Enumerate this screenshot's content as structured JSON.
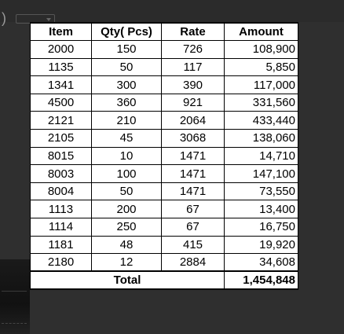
{
  "background": {
    "paren_text": ")"
  },
  "table": {
    "headers": [
      "Item",
      "Qty( Pcs)",
      "Rate",
      "Amount"
    ],
    "rows": [
      [
        "2000",
        "150",
        "726",
        "108,900"
      ],
      [
        "1135",
        "50",
        "117",
        "5,850"
      ],
      [
        "1341",
        "300",
        "390",
        "117,000"
      ],
      [
        "4500",
        "360",
        "921",
        "331,560"
      ],
      [
        "2121",
        "210",
        "2064",
        "433,440"
      ],
      [
        "2105",
        "45",
        "3068",
        "138,060"
      ],
      [
        "8015",
        "10",
        "1471",
        "14,710"
      ],
      [
        "8003",
        "100",
        "1471",
        "147,100"
      ],
      [
        "8004",
        "50",
        "1471",
        "73,550"
      ],
      [
        "1113",
        "200",
        "67",
        "13,400"
      ],
      [
        "1114",
        "250",
        "67",
        "16,750"
      ],
      [
        "1181",
        "48",
        "415",
        "19,920"
      ],
      [
        "2180",
        "12",
        "2884",
        "34,608"
      ]
    ],
    "total_label": "Total",
    "total_value": "1,454,848"
  }
}
